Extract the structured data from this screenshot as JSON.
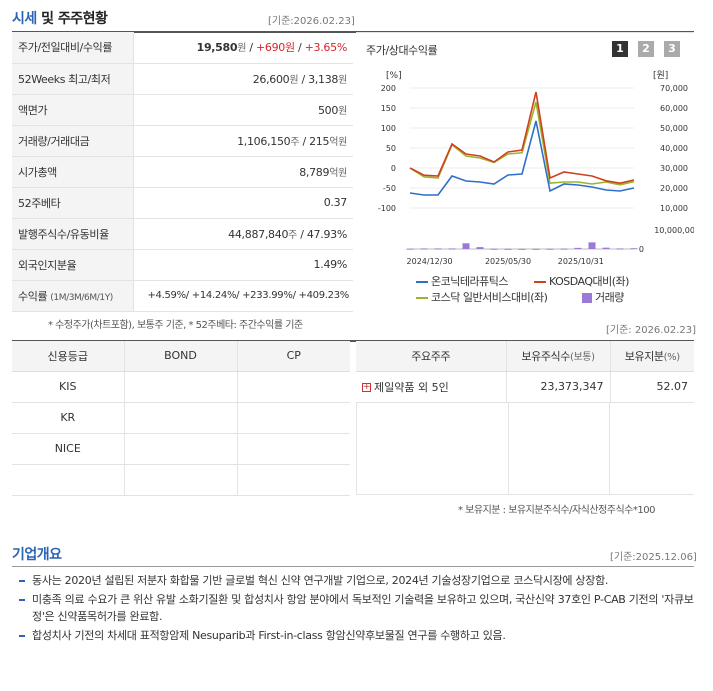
{
  "quote": {
    "title_highlight": "시세",
    "title_rest": " 및 주주현황",
    "ref_date": "[기준:2026.02.23]",
    "rows": [
      {
        "label": "주가/전일대비/수익률",
        "price": "19,580",
        "unit": "원",
        "sep1": " / ",
        "change": "+690원",
        "sep2": " / ",
        "rate": "+3.65%"
      },
      {
        "label": "52Weeks 최고/최저",
        "value": "26,600",
        "unit": "원",
        "mid": " / 3,138",
        "unit2": "원"
      },
      {
        "label": "액면가",
        "value": "500",
        "unit": "원"
      },
      {
        "label": "거래량/거래대금",
        "value": "1,106,150",
        "unit": "주",
        "mid": " / 215",
        "unit2": "억원"
      },
      {
        "label": "시가총액",
        "value": "8,789",
        "unit": "억원"
      },
      {
        "label": "52주베타",
        "value": "0.37"
      },
      {
        "label": "발행주식수/유동비율",
        "value": "44,887,840",
        "unit": "주",
        "mid": " / 47.93%"
      },
      {
        "label": "외국인지분율",
        "value": "1.49%"
      },
      {
        "label": "수익률",
        "label_sub": "(1M/3M/6M/1Y)",
        "value": "+4.59%/ +14.24%/ +233.99%/ +409.23%"
      }
    ],
    "note": "* 수정주가(차트포함), 보통주 기준, * 52주베타: 주간수익률 기준"
  },
  "chart": {
    "title": "주가/상대수익률",
    "pages": [
      "1",
      "2",
      "3"
    ],
    "left_unit": "[%]",
    "right_unit": "[원]",
    "legend": {
      "series1": "온코닉테라퓨틱스",
      "series2": "KOSDAQ대비(좌)",
      "series3": "코스닥 일반서비스대비(좌)",
      "series4": "거래량"
    },
    "colors": {
      "stock": "#2f6fc9",
      "kosdaq": "#d04020",
      "sector": "#9ab52a",
      "volume": "#9b7ad7"
    }
  },
  "chart_data": {
    "type": "line",
    "x_ticks": [
      "2024/12/30",
      "2025/05/30",
      "2025/10/31"
    ],
    "left_ticks": [
      "200",
      "150",
      "100",
      "50",
      "0",
      "-50",
      "-100"
    ],
    "right_ticks": [
      "70,000",
      "60,000",
      "50,000",
      "40,000",
      "30,000",
      "20,000",
      "10,000"
    ],
    "volume_ticks": [
      "10,000,000",
      "0"
    ],
    "left_range": [
      -100,
      200
    ],
    "right_range": [
      10000,
      70000
    ],
    "volume_range": [
      0,
      10000000
    ],
    "series": [
      {
        "name": "KOSDAQ대비(좌)",
        "axis": "left",
        "values": [
          0,
          -18,
          -20,
          60,
          35,
          30,
          15,
          40,
          45,
          190,
          -25,
          -10,
          -15,
          -20,
          -32,
          -38,
          -30
        ]
      },
      {
        "name": "코스닥 일반서비스대비(좌)",
        "axis": "left",
        "values": [
          0,
          -22,
          -25,
          58,
          30,
          25,
          14,
          35,
          38,
          165,
          -38,
          -35,
          -35,
          -40,
          -35,
          -42,
          -34
        ]
      },
      {
        "name": "온코닉테라퓨틱스",
        "axis": "right",
        "values": [
          17500,
          16500,
          16500,
          26000,
          23500,
          23000,
          22000,
          26500,
          27000,
          53500,
          18500,
          22000,
          21500,
          20500,
          19000,
          18500,
          20000
        ]
      },
      {
        "name": "거래량",
        "axis": "volume",
        "values": [
          200000,
          300000,
          300000,
          300000,
          3000000,
          1000000,
          150000,
          100000,
          100000,
          100000,
          150000,
          200000,
          600000,
          3500000,
          700000,
          300000,
          400000
        ]
      }
    ]
  },
  "credit": {
    "headers": [
      "신용등급",
      "BOND",
      "CP"
    ],
    "rows": [
      [
        "KIS",
        "",
        ""
      ],
      [
        "KR",
        "",
        ""
      ],
      [
        "NICE",
        "",
        ""
      ],
      [
        "",
        "",
        ""
      ]
    ]
  },
  "holders": {
    "ref_date": "[기준: 2026.02.23]",
    "headers": {
      "name": "주요주주",
      "shares": "보유주식수",
      "shares_unit": "(보통)",
      "ratio": "보유지분",
      "ratio_unit": "(%)"
    },
    "rows": [
      {
        "name": "제일약품 외 5인",
        "shares": "23,373,347",
        "ratio": "52.07"
      }
    ],
    "note": "* 보유지분 : 보유지분주식수/자식산정주식수*100"
  },
  "overview": {
    "title": "기업개요",
    "ref_date": "[기준:2025.12.06]",
    "items": [
      "동사는 2020년 설립된 저분자 화합물 기반 글로벌 혁신 신약 연구개발 기업으로, 2024년 기술성장기업으로 코스닥시장에 상장함.",
      "미충족 의료 수요가 큰 위산 유발 소화기질환 및 합성치사 항암 분야에서 독보적인 기술력을 보유하고 있으며, 국산신약 37호인 P-CAB 기전의 '자큐보정'은 신약품목허가를 완료함.",
      "합성치사 기전의 차세대 표적항암제 Nesuparib과 First-in-class 항암신약후보물질 연구를 수행하고 있음."
    ]
  }
}
